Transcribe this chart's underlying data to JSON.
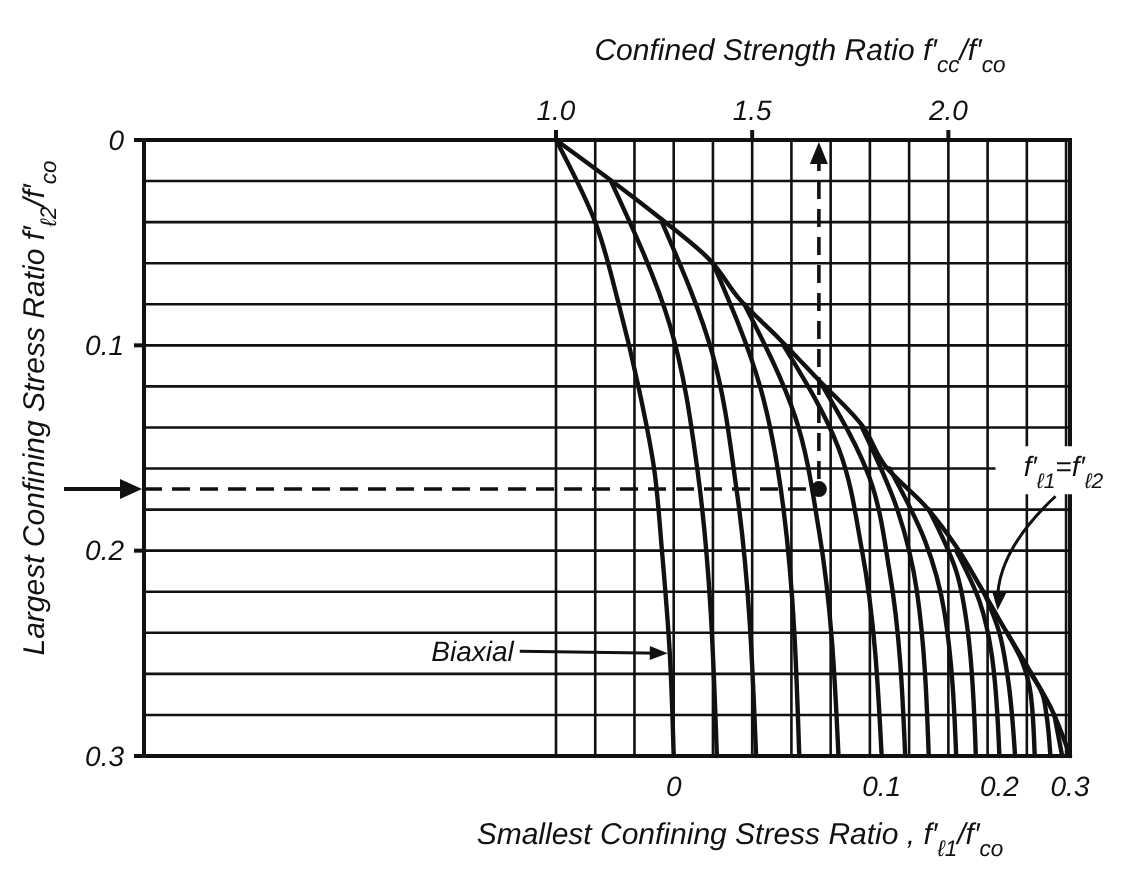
{
  "chart_data": {
    "type": "line",
    "xlabel": "Confined Strength Ratio  f′$_{cc}$/f′$_{co}$",
    "ylabel": "Largest Confining Stress Ratio  f′$_{ℓ2}$/f′$_{co}$",
    "xlim": [
      -0.05,
      2.31
    ],
    "xticks": [
      {
        "value": 1,
        "label": "1.0"
      },
      {
        "value": 1.1,
        "label": null
      },
      {
        "value": 1.2,
        "label": null
      },
      {
        "value": 1.3,
        "label": null
      },
      {
        "value": 1.4,
        "label": null
      },
      1.5,
      {
        "value": 1.6,
        "label": null
      },
      {
        "value": 1.7,
        "label": null
      },
      {
        "value": 1.8,
        "label": null
      },
      {
        "value": 1.9,
        "label": null
      },
      {
        "value": 2,
        "label": "2.0"
      },
      {
        "value": 2.1,
        "label": null
      },
      {
        "value": 2.2,
        "label": null
      },
      {
        "value": 2.3,
        "label": null
      }
    ],
    "ylim": [
      0.3,
      0
    ],
    "yticks": [
      0,
      {
        "value": 0.02,
        "label": null
      },
      {
        "value": 0.04,
        "label": null
      },
      {
        "value": 0.06,
        "label": null
      },
      {
        "value": 0.08,
        "label": null
      },
      0.1,
      {
        "value": 0.12,
        "label": null
      },
      {
        "value": 0.14,
        "label": null
      },
      {
        "value": 0.16,
        "label": null
      },
      {
        "value": 0.18,
        "label": null
      },
      0.2,
      {
        "value": 0.22,
        "label": null
      },
      {
        "value": 0.24,
        "label": null
      },
      {
        "value": 0.26,
        "label": null
      },
      {
        "value": 0.28,
        "label": null
      },
      0.3
    ],
    "grid": true,
    "line_style": "solid",
    "ref_lines": [
      {
        "axis": "y",
        "value": 0.17,
        "line_style": "dashed",
        "color": "#111111"
      },
      {
        "axis": "x",
        "value": 1.67,
        "line_style": "dashed",
        "color": "#111111"
      }
    ],
    "series": [
      {
        "color": "#111111",
        "x": [
          1.0,
          1.265,
          1.39,
          1.47,
          1.57,
          1.67,
          1.78,
          1.84,
          1.94,
          2.02,
          2.08,
          2.14,
          2.2,
          2.26,
          2.31
        ],
        "values": [
          0,
          0.038,
          0.058,
          0.078,
          0.097,
          0.117,
          0.139,
          0.159,
          0.178,
          0.198,
          0.217,
          0.237,
          0.256,
          0.276,
          0.3
        ]
      },
      {
        "color": "#111111",
        "x": [
          1.0,
          1.1,
          1.16,
          1.21,
          1.25,
          1.27,
          1.29,
          1.3
        ],
        "values": [
          0,
          0.04,
          0.08,
          0.12,
          0.16,
          0.2,
          0.25,
          0.3
        ]
      },
      {
        "color": "#111111",
        "x": [
          1.14,
          1.29,
          1.36,
          1.41
        ],
        "values": [
          0.02,
          0.09,
          0.16,
          0.3
        ]
      },
      {
        "color": "#111111",
        "x": [
          1.27,
          1.4,
          1.46,
          1.51
        ],
        "values": [
          0.04,
          0.105,
          0.17,
          0.3
        ]
      },
      {
        "color": "#111111",
        "x": [
          1.4,
          1.52,
          1.58,
          1.62
        ],
        "values": [
          0.06,
          0.12,
          0.18,
          0.3
        ]
      },
      {
        "color": "#111111",
        "x": [
          1.48,
          1.61,
          1.67,
          1.72
        ],
        "values": [
          0.08,
          0.135,
          0.19,
          0.3
        ]
      },
      {
        "color": "#111111",
        "x": [
          1.58,
          1.72,
          1.78,
          1.83
        ],
        "values": [
          0.1,
          0.15,
          0.2,
          0.3
        ]
      },
      {
        "color": "#111111",
        "x": [
          1.68,
          1.8,
          1.85,
          1.89
        ],
        "values": [
          0.12,
          0.165,
          0.21,
          0.3
        ]
      },
      {
        "color": "#111111",
        "x": [
          1.78,
          1.87,
          1.92,
          1.95
        ],
        "values": [
          0.14,
          0.18,
          0.22,
          0.3
        ]
      },
      {
        "color": "#111111",
        "x": [
          1.85,
          1.94,
          1.99,
          2.02
        ],
        "values": [
          0.16,
          0.195,
          0.23,
          0.3
        ]
      },
      {
        "color": "#111111",
        "x": [
          1.95,
          2.02,
          2.05,
          2.07
        ],
        "values": [
          0.18,
          0.21,
          0.24,
          0.3
        ]
      },
      {
        "color": "#111111",
        "x": [
          2.02,
          2.08,
          2.11,
          2.13
        ],
        "values": [
          0.2,
          0.225,
          0.25,
          0.3
        ]
      },
      {
        "color": "#111111",
        "x": [
          2.09,
          2.13,
          2.15,
          2.17
        ],
        "values": [
          0.22,
          0.24,
          0.26,
          0.3
        ]
      },
      {
        "color": "#111111",
        "x": [
          2.15,
          2.19,
          2.21,
          2.22
        ],
        "values": [
          0.24,
          0.255,
          0.27,
          0.3
        ]
      },
      {
        "color": "#111111",
        "x": [
          2.21,
          2.24,
          2.25,
          2.26
        ],
        "values": [
          0.26,
          0.27,
          0.28,
          0.3
        ]
      },
      {
        "color": "#111111",
        "x": [
          2.27,
          2.29
        ],
        "values": [
          0.28,
          0.3
        ]
      },
      {
        "type": "scatter",
        "marker": "circle",
        "color": "#111111",
        "x": [
          1.67
        ],
        "values": [
          0.17
        ]
      }
    ],
    "annotations": [
      {
        "text": "0",
        "x": 1.3,
        "y": 0.3
      },
      {
        "text": "0.1",
        "x": 1.83,
        "y": 0.3
      },
      {
        "text": "0.2",
        "x": 2.13,
        "y": 0.3
      },
      {
        "text": "0.3",
        "x": 2.31,
        "y": 0.3
      },
      {
        "text": "Biaxial",
        "x": 1.29,
        "y": 0.25
      },
      {
        "text": "f′$_{ℓ1}$=f′$_{ℓ2}$",
        "x": 2.11,
        "y": 0.23
      },
      "Smallest Confining Stress Ratio , f′$_{ℓ1}$/f′$_{co}$"
    ]
  }
}
